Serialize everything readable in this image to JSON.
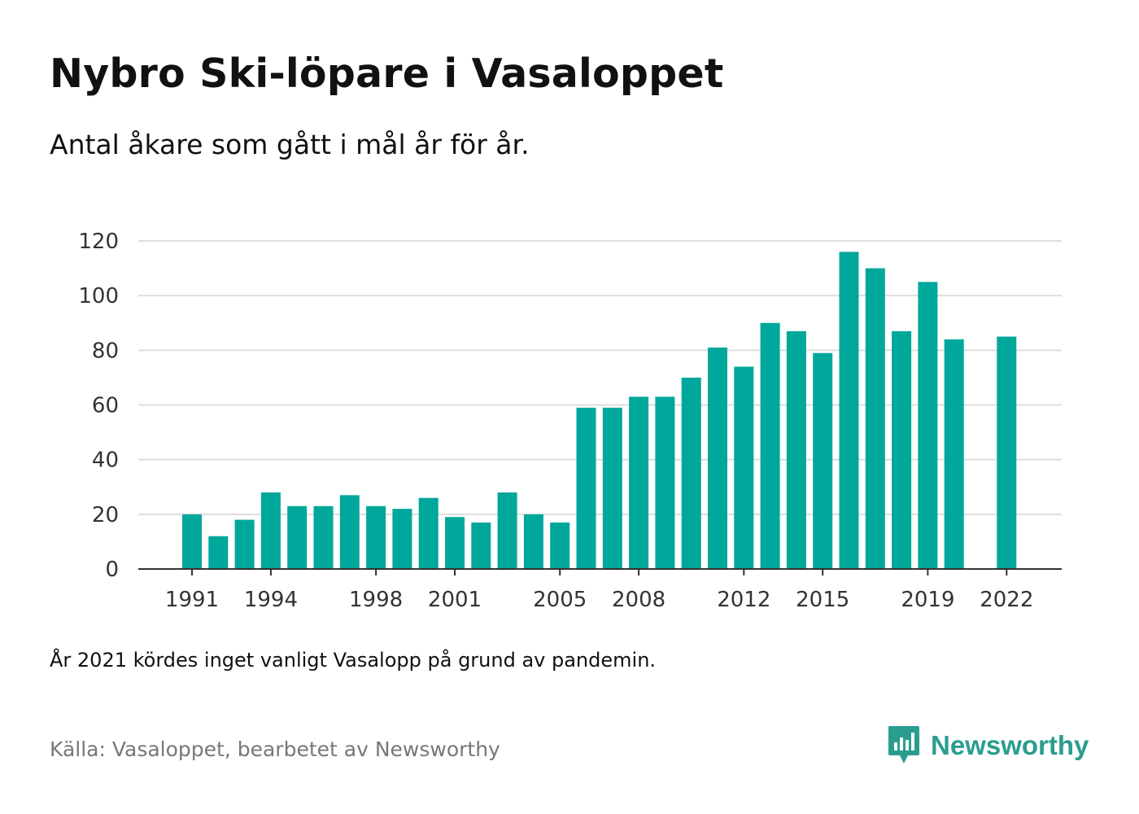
{
  "header": {
    "title": "Nybro Ski-löpare i Vasaloppet",
    "subtitle": "Antal åkare som gått i mål år för år."
  },
  "footer": {
    "note": "År 2021 kördes inget vanligt Vasalopp på grund av pandemin.",
    "source": "Källa: Vasaloppet, bearbetet av Newsworthy",
    "logo_text": "Newsworthy"
  },
  "colors": {
    "bar": "#00a79b",
    "grid": "#dddddd",
    "axis": "#333333",
    "logo": "#2a9d8f"
  },
  "icons": {
    "logo": "newsworthy-logo-icon"
  },
  "chart_data": {
    "type": "bar",
    "categories": [
      1991,
      1992,
      1993,
      1994,
      1995,
      1996,
      1997,
      1998,
      1999,
      2000,
      2001,
      2002,
      2003,
      2004,
      2005,
      2006,
      2007,
      2008,
      2009,
      2010,
      2011,
      2012,
      2013,
      2014,
      2015,
      2016,
      2017,
      2018,
      2019,
      2020,
      2021,
      2022
    ],
    "values": [
      20,
      12,
      18,
      28,
      23,
      23,
      27,
      23,
      22,
      26,
      19,
      17,
      28,
      20,
      17,
      59,
      59,
      63,
      63,
      70,
      81,
      74,
      90,
      87,
      79,
      116,
      110,
      87,
      105,
      84,
      null,
      85
    ],
    "x_tick_labels": [
      "1991",
      "1994",
      "1998",
      "2001",
      "2005",
      "2008",
      "2012",
      "2015",
      "2019",
      "2022"
    ],
    "y_ticks": [
      0,
      20,
      40,
      60,
      80,
      100,
      120
    ],
    "ylim": [
      0,
      120
    ],
    "grid": true,
    "legend": "none"
  }
}
